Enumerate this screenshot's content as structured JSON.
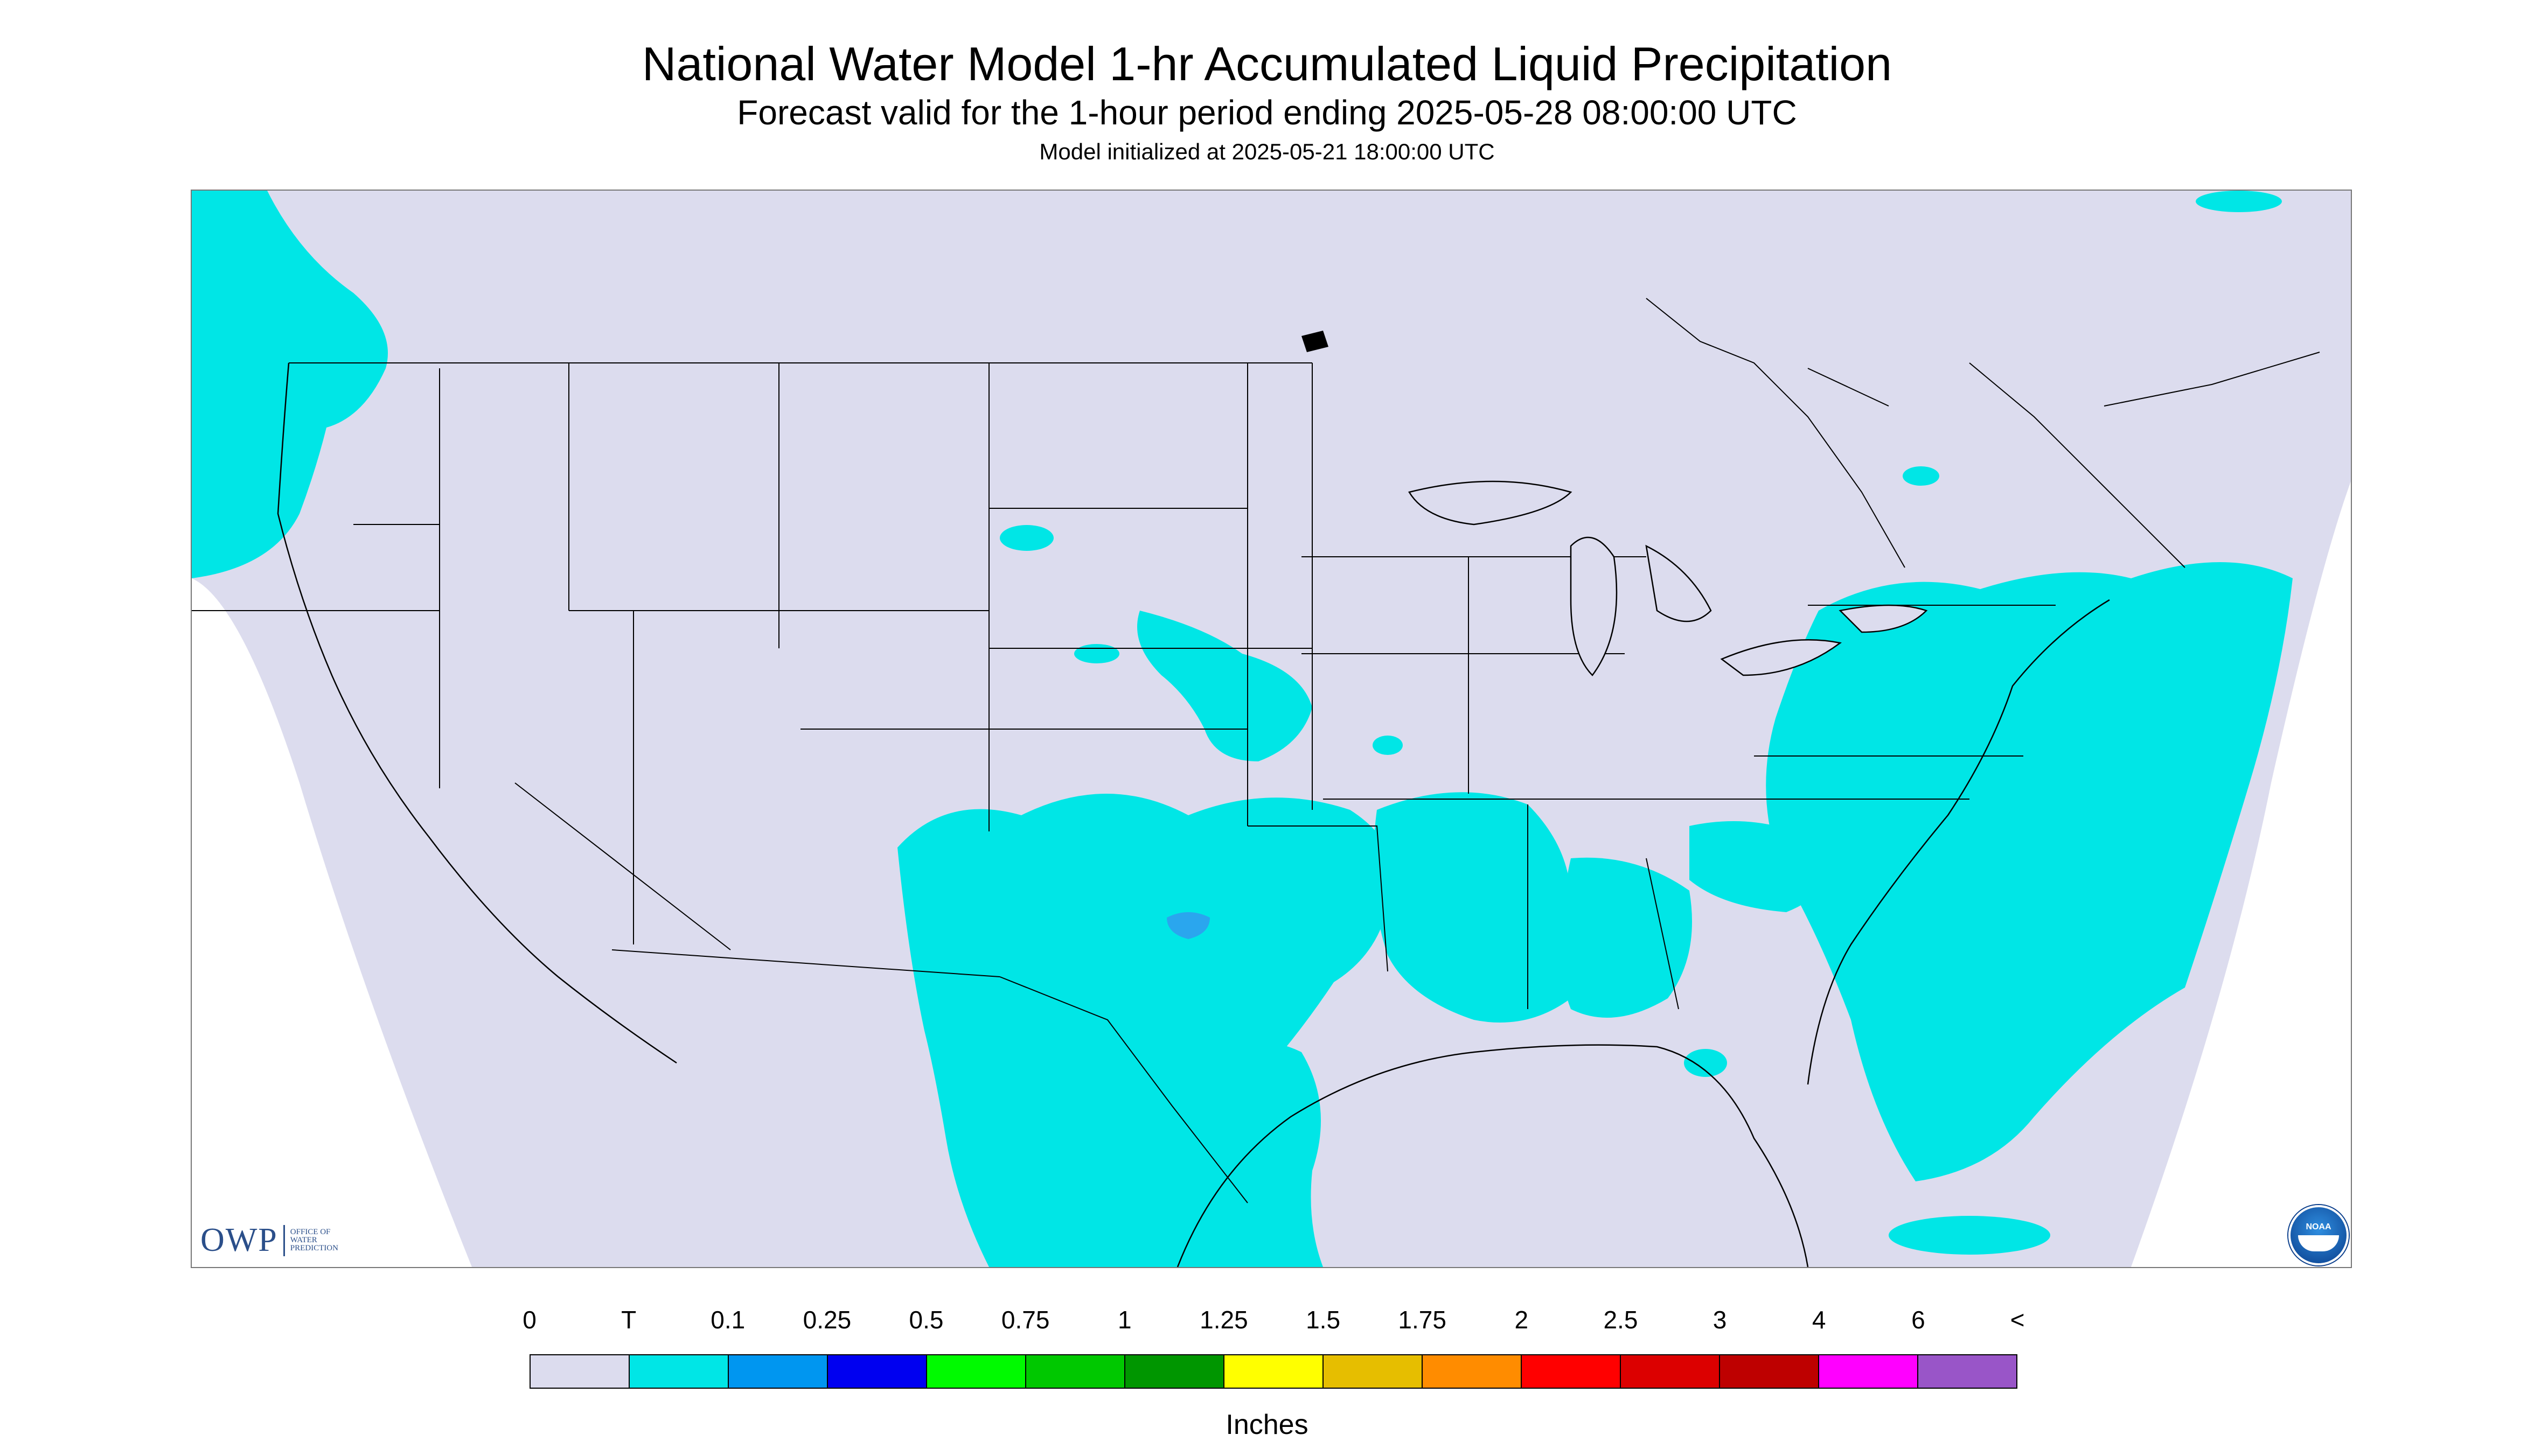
{
  "header": {
    "title": "National Water Model 1-hr Accumulated Liquid Precipitation",
    "subtitle": "Forecast valid for the 1-hour period ending 2025-05-28 08:00:00 UTC",
    "init_line": "Model initialized at 2025-05-21 18:00:00 UTC"
  },
  "logos": {
    "owp_mark": "OWP",
    "owp_name": "Office of Water Prediction",
    "noaa": "NOAA"
  },
  "legend": {
    "labels": [
      "0",
      "T",
      "0.1",
      "0.25",
      "0.5",
      "0.75",
      "1",
      "1.25",
      "1.5",
      "1.75",
      "2",
      "2.5",
      "3",
      "4",
      "6",
      "<"
    ],
    "colors": [
      "#dcdcee",
      "#00e6e6",
      "#0096f0",
      "#0000f0",
      "#00fa00",
      "#00c800",
      "#009600",
      "#ffff00",
      "#e6be00",
      "#ff8c00",
      "#ff0000",
      "#dc0000",
      "#be0000",
      "#ff00ff",
      "#9955c8"
    ],
    "units": "Inches"
  },
  "map_colors": {
    "background": "#dcdcee",
    "trace": "#00e6e6",
    "light": "#2aa6ee",
    "boundary": "#000000"
  }
}
